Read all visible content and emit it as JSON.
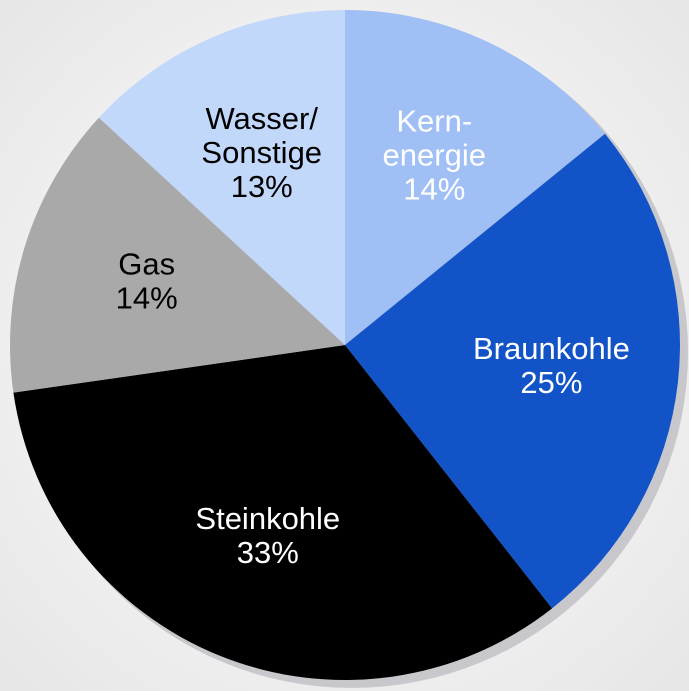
{
  "chart_data": {
    "type": "pie",
    "categories": [
      [
        "Kern-",
        "energie"
      ],
      [
        "Braunkohle"
      ],
      [
        "Steinkohle"
      ],
      [
        "Gas"
      ],
      [
        "Wasser/",
        "Sonstige"
      ]
    ],
    "values": [
      14,
      25,
      33,
      14,
      13
    ],
    "value_labels": [
      "14%",
      "25%",
      "33%",
      "14%",
      "13%"
    ],
    "colors": [
      "#9fbff5",
      "#1254c8",
      "#000000",
      "#a9a9a9",
      "#c2d8fa"
    ],
    "label_colors": [
      "#ffffff",
      "#ffffff",
      "#ffffff",
      "#000000",
      "#000000"
    ]
  }
}
